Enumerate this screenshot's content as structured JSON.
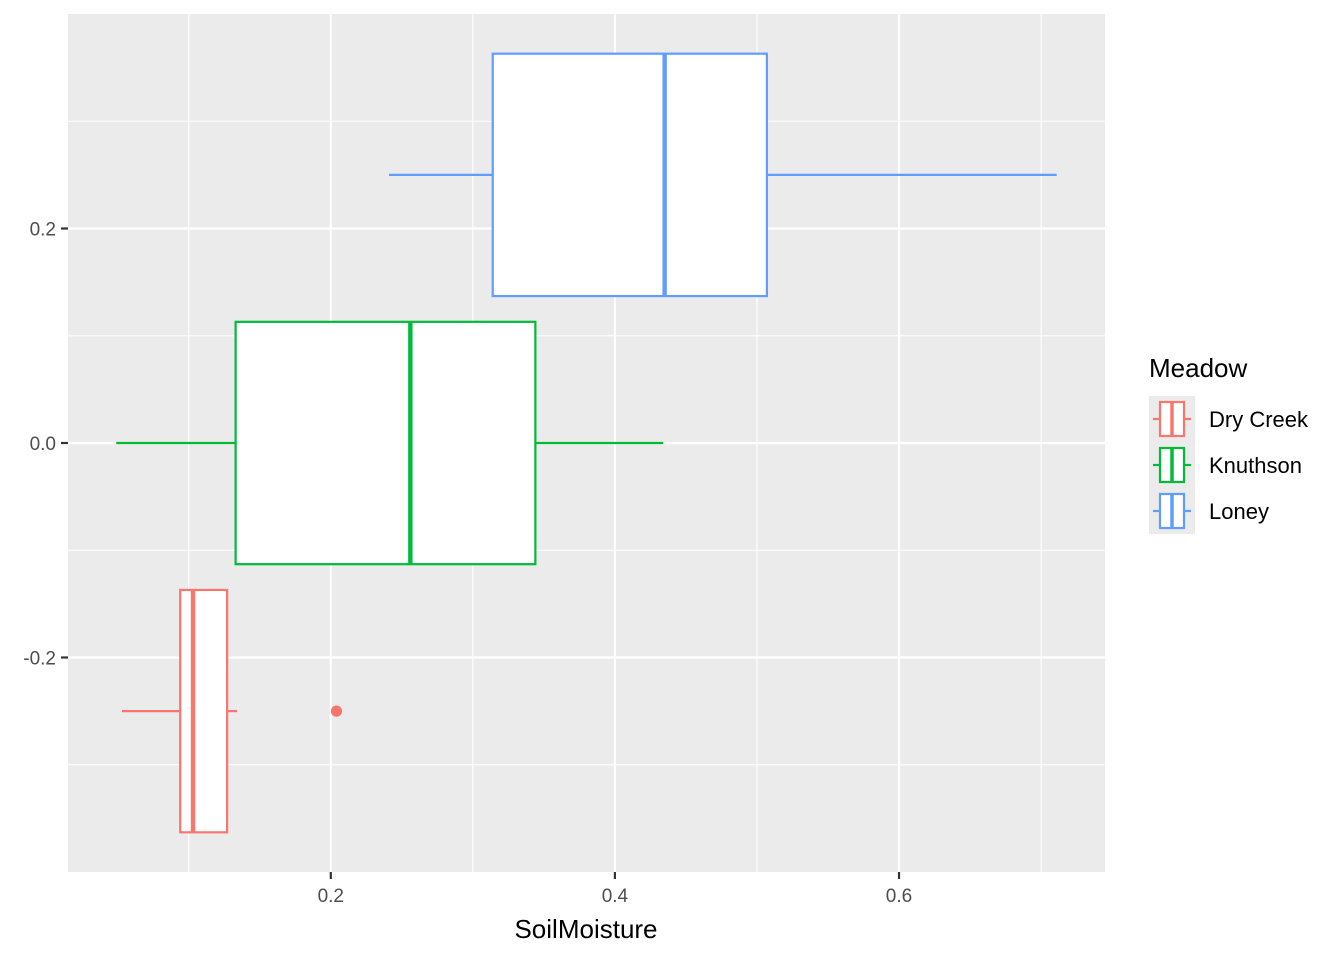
{
  "chart_data": {
    "type": "boxplot",
    "orientation": "horizontal",
    "xlabel": "SoilMoisture",
    "ylabel": "",
    "xlim": [
      0.015,
      0.745
    ],
    "ylim": [
      -0.4,
      0.4
    ],
    "x_ticks": [
      {
        "value": 0.2,
        "label": "0.2"
      },
      {
        "value": 0.4,
        "label": "0.4"
      },
      {
        "value": 0.6,
        "label": "0.6"
      }
    ],
    "y_ticks": [
      {
        "value": -0.2,
        "label": "-0.2"
      },
      {
        "value": 0.0,
        "label": "0.0"
      },
      {
        "value": 0.2,
        "label": "0.2"
      }
    ],
    "grid": true,
    "legend": {
      "title": "Meadow",
      "position": "right",
      "entries": [
        {
          "label": "Dry Creek",
          "color": "#F8766D"
        },
        {
          "label": "Knuthson",
          "color": "#00BA38"
        },
        {
          "label": "Loney",
          "color": "#619CFF"
        }
      ]
    },
    "series": [
      {
        "name": "Dry Creek",
        "color": "#F8766D",
        "y_center": -0.25,
        "y_min": -0.363,
        "y_max": -0.137,
        "whisker_low": 0.053,
        "q1": 0.094,
        "median": 0.103,
        "q3": 0.127,
        "whisker_high": 0.134,
        "outliers": [
          0.204
        ]
      },
      {
        "name": "Knuthson",
        "color": "#00BA38",
        "y_center": 0.0,
        "y_min": -0.113,
        "y_max": 0.113,
        "whisker_low": 0.049,
        "q1": 0.133,
        "median": 0.256,
        "q3": 0.344,
        "whisker_high": 0.434,
        "outliers": []
      },
      {
        "name": "Loney",
        "color": "#619CFF",
        "y_center": 0.25,
        "y_min": 0.137,
        "y_max": 0.363,
        "whisker_low": 0.241,
        "q1": 0.314,
        "median": 0.435,
        "q3": 0.507,
        "whisker_high": 0.711,
        "outliers": []
      }
    ]
  }
}
